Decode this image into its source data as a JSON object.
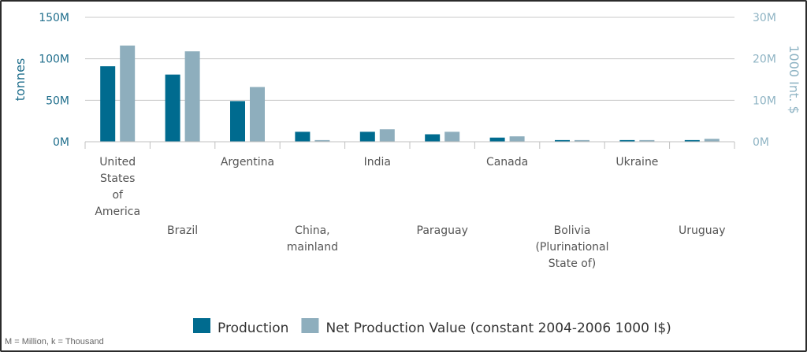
{
  "chart_data": {
    "type": "bar",
    "categories": [
      [
        "United",
        "States",
        "of",
        "America"
      ],
      [
        "Brazil"
      ],
      [
        "Argentina"
      ],
      [
        "China,",
        "mainland"
      ],
      [
        "India"
      ],
      [
        "Paraguay"
      ],
      [
        "Canada"
      ],
      [
        "Bolivia",
        "(Plurinational",
        "State of)"
      ],
      [
        "Ukraine"
      ],
      [
        "Uruguay"
      ]
    ],
    "series": [
      {
        "name": "Production",
        "axis": "left",
        "color": "#006b8f",
        "values": [
          91000000,
          81000000,
          49000000,
          12000000,
          12000000,
          9000000,
          5000000,
          2000000,
          2000000,
          2000000
        ]
      },
      {
        "name": "Net Production Value (constant 2004-2006 1000 I$)",
        "axis": "right",
        "color": "#8eaebd",
        "values": [
          23200000,
          21800000,
          13200000,
          400000,
          3000000,
          2400000,
          1300000,
          400000,
          400000,
          700000
        ]
      }
    ],
    "y_left": {
      "label": "tonnes",
      "range": [
        0,
        150000000
      ],
      "ticks": [
        0,
        50000000,
        100000000,
        150000000
      ],
      "tick_labels": [
        "0M",
        "50M",
        "100M",
        "150M"
      ]
    },
    "y_right": {
      "label": "1000 Int. $",
      "range": [
        0,
        30000000
      ],
      "ticks": [
        0,
        10000000,
        20000000,
        30000000
      ],
      "tick_labels": [
        "0M",
        "10M",
        "20M",
        "30M"
      ]
    },
    "grid": true,
    "legend_position": "bottom"
  },
  "footnote": "M = Million, k = Thousand"
}
